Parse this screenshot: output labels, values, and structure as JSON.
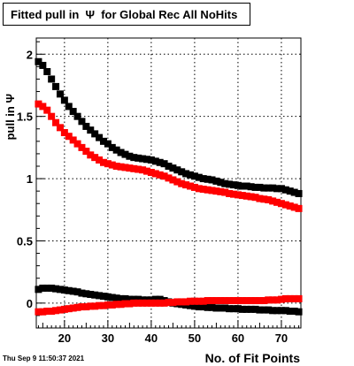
{
  "title": "Fitted pull in  Ψ  for Global Rec All NoHits",
  "timestamp": "Thu Sep  9 11:50:37 2021",
  "chart_data": {
    "type": "scatter",
    "title": "Fitted pull in  Ψ  for Global Rec All NoHits",
    "xlabel": "No. of Fit Points",
    "ylabel": "pull in  Ψ",
    "xlim": [
      13.5,
      74.5
    ],
    "ylim": [
      -0.2,
      2.13
    ],
    "xticks": [
      20,
      30,
      40,
      50,
      60,
      70
    ],
    "yticks": [
      0,
      0.5,
      1,
      1.5,
      2
    ],
    "ytick_labels": [
      "0",
      "0.5",
      "1",
      "1.5",
      "2"
    ],
    "grid": true,
    "marker": "square",
    "series": [
      {
        "color": "#000000",
        "x_start": 14,
        "x_step": 1,
        "values": [
          1.94,
          1.91,
          1.86,
          1.8,
          1.74,
          1.68,
          1.63,
          1.58,
          1.54,
          1.5,
          1.46,
          1.42,
          1.39,
          1.36,
          1.33,
          1.3,
          1.28,
          1.25,
          1.23,
          1.21,
          1.195,
          1.18,
          1.17,
          1.165,
          1.16,
          1.155,
          1.15,
          1.14,
          1.13,
          1.12,
          1.1,
          1.085,
          1.07,
          1.055,
          1.04,
          1.03,
          1.02,
          1.01,
          1.0,
          0.995,
          0.99,
          0.98,
          0.97,
          0.96,
          0.955,
          0.95,
          0.945,
          0.94,
          0.94,
          0.935,
          0.93,
          0.93,
          0.925,
          0.925,
          0.925,
          0.92,
          0.92,
          0.91,
          0.9,
          0.89,
          0.88
        ]
      },
      {
        "color": "#ff0000",
        "x_start": 14,
        "x_step": 1,
        "values": [
          1.6,
          1.58,
          1.55,
          1.5,
          1.45,
          1.41,
          1.37,
          1.34,
          1.31,
          1.28,
          1.25,
          1.22,
          1.19,
          1.17,
          1.15,
          1.13,
          1.12,
          1.11,
          1.1,
          1.095,
          1.09,
          1.085,
          1.08,
          1.075,
          1.07,
          1.06,
          1.05,
          1.04,
          1.03,
          1.02,
          1.005,
          0.99,
          0.975,
          0.96,
          0.95,
          0.94,
          0.93,
          0.92,
          0.915,
          0.91,
          0.905,
          0.9,
          0.895,
          0.89,
          0.88,
          0.875,
          0.87,
          0.865,
          0.86,
          0.855,
          0.85,
          0.84,
          0.835,
          0.83,
          0.82,
          0.81,
          0.8,
          0.79,
          0.78,
          0.77,
          0.76
        ]
      },
      {
        "color": "#000000",
        "x_start": 14,
        "x_step": 1,
        "values": [
          0.11,
          0.12,
          0.12,
          0.12,
          0.115,
          0.11,
          0.105,
          0.1,
          0.095,
          0.09,
          0.08,
          0.075,
          0.07,
          0.065,
          0.06,
          0.055,
          0.05,
          0.045,
          0.04,
          0.035,
          0.035,
          0.03,
          0.03,
          0.03,
          0.025,
          0.025,
          0.025,
          0.03,
          0.03,
          0.02,
          0.01,
          0.0,
          -0.005,
          -0.01,
          -0.015,
          -0.02,
          -0.025,
          -0.03,
          -0.03,
          -0.035,
          -0.035,
          -0.04,
          -0.04,
          -0.04,
          -0.045,
          -0.045,
          -0.045,
          -0.05,
          -0.05,
          -0.05,
          -0.05,
          -0.055,
          -0.055,
          -0.055,
          -0.06,
          -0.06,
          -0.06,
          -0.06,
          -0.065,
          -0.065,
          -0.07
        ]
      },
      {
        "color": "#ff0000",
        "x_start": 14,
        "x_step": 1,
        "values": [
          -0.07,
          -0.07,
          -0.065,
          -0.065,
          -0.06,
          -0.055,
          -0.05,
          -0.045,
          -0.04,
          -0.035,
          -0.03,
          -0.03,
          -0.025,
          -0.025,
          -0.02,
          -0.02,
          -0.015,
          -0.015,
          -0.01,
          -0.01,
          -0.005,
          -0.005,
          0.0,
          0.0,
          0.0,
          0.0,
          0.0,
          0.0,
          0.0,
          0.0,
          0.005,
          0.005,
          0.01,
          0.01,
          0.01,
          0.015,
          0.015,
          0.015,
          0.015,
          0.02,
          0.02,
          0.02,
          0.02,
          0.02,
          0.02,
          0.02,
          0.02,
          0.02,
          0.02,
          0.02,
          0.02,
          0.02,
          0.02,
          0.025,
          0.025,
          0.025,
          0.03,
          0.035,
          0.035,
          0.035,
          0.035
        ]
      }
    ]
  }
}
